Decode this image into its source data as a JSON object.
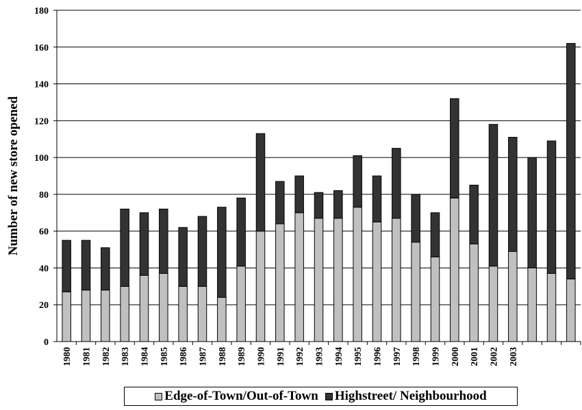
{
  "chart_data": {
    "type": "bar",
    "stacked": true,
    "title": "",
    "xlabel": "",
    "ylabel": "Number of new store opened",
    "ylim": [
      0,
      180
    ],
    "yticks": [
      0,
      20,
      40,
      60,
      80,
      100,
      120,
      140,
      160,
      180
    ],
    "grid": true,
    "legend_position": "bottom",
    "categories": [
      "1980",
      "1981",
      "1982",
      "1983",
      "1984",
      "1985",
      "1986",
      "1987",
      "1988",
      "1989",
      "1990",
      "1991",
      "1992",
      "1993",
      "1994",
      "1995",
      "1996",
      "1997",
      "1998",
      "1999",
      "2000",
      "2001",
      "2002",
      "2003",
      "",
      "",
      ""
    ],
    "series": [
      {
        "name": "Edge-of-Town/Out-of-Town",
        "color": "#c0c0c0",
        "values": [
          27,
          28,
          28,
          30,
          36,
          37,
          30,
          30,
          24,
          41,
          60,
          64,
          70,
          67,
          67,
          73,
          65,
          67,
          54,
          46,
          78,
          53,
          41,
          49,
          40,
          37,
          34
        ]
      },
      {
        "name": "Highstreet/ Neighbourhood",
        "color": "#333333",
        "values": [
          28,
          27,
          23,
          42,
          34,
          35,
          32,
          38,
          49,
          37,
          53,
          23,
          20,
          14,
          15,
          28,
          25,
          38,
          26,
          24,
          54,
          32,
          77,
          62,
          60,
          72,
          128
        ]
      }
    ]
  }
}
